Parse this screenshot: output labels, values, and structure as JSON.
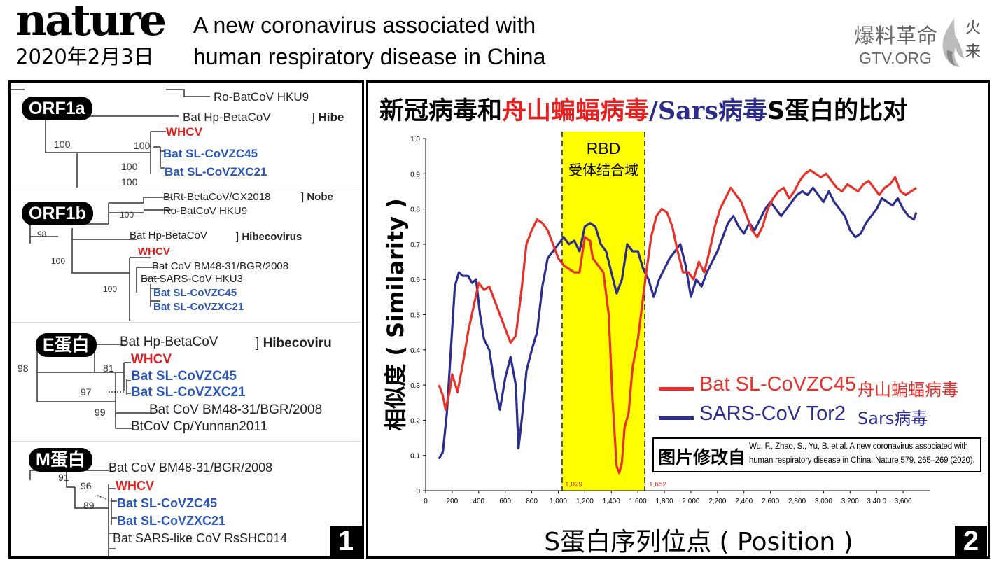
{
  "header": {
    "logo": "nature",
    "date": "2020年2月3日",
    "title_line1": "A new coronavirus associated with",
    "title_line2": "human respiratory disease in China"
  },
  "watermark": {
    "cn": "爆料革命",
    "url": "GTV.ORG",
    "mark": "火来"
  },
  "panel1": {
    "number": "1",
    "orf1a": {
      "badge": "ORF1a",
      "labels": [
        "Ro-BatCoV HKU9",
        "Bat Hp-BetaCoV",
        "WHCV",
        "Bat SL-CoVZC45",
        "Bat SL-CoVZXC21"
      ],
      "clade": "Hibe",
      "bootstraps": [
        "100",
        "100",
        "100",
        "100"
      ]
    },
    "orf1b": {
      "badge": "ORF1b",
      "labels": [
        "BtRt-BetaCoV/GX2018",
        "Ro-BatCoV HKU9",
        "Bat Hp-BetaCoV",
        "WHCV",
        "Bat CoV BM48-31/BGR/2008",
        "Bat SARS-CoV HKU3",
        "Bat SL-CoVZC45",
        "Bat SL-CoVZXC21"
      ],
      "clades": [
        "Nobe",
        "Hibecovirus"
      ],
      "bootstraps": [
        "100",
        "98",
        "100",
        "100"
      ]
    },
    "e": {
      "badge": "E蛋白",
      "labels": [
        "Bat Hp-BetaCoV",
        "WHCV",
        "Bat SL-CoVZC45",
        "Bat SL-CoVZXC21",
        "Bat CoV BM48-31/BGR/2008",
        "BtCoV Cp/Yunnan2011"
      ],
      "clade": "Hibecoviru",
      "bootstraps": [
        "98",
        "81",
        "97",
        "99"
      ]
    },
    "m": {
      "badge": "M蛋白",
      "labels": [
        "Bat CoV BM48-31/BGR/2008",
        "WHCV",
        "Bat SL-CoVZC45",
        "Bat SL-CoVZXC21",
        "Bat SARS-like CoV RsSHC014"
      ],
      "bootstraps": [
        "91",
        "96",
        "89"
      ]
    }
  },
  "panel2": {
    "number": "2",
    "title_parts": [
      "新冠病毒和",
      "舟山蝙蝠病毒",
      "/",
      "Sars",
      "病毒",
      "S蛋白的比对"
    ],
    "rbd_label": "RBD",
    "rbd_sublabel": "受体结合域",
    "rbd_start_label": "1,029",
    "rbd_end_label": "1,652",
    "legend": [
      {
        "name": "Bat SL-CoVZC45",
        "cn": "舟山蝙蝠病毒",
        "color": "#e8312a"
      },
      {
        "name": "SARS-CoV Tor2",
        "cn": "Sars病毒",
        "color": "#2b2e8f"
      }
    ],
    "credit_label": "图片修改自",
    "credit_line1": "Wu, F., Zhao, S., Yu, B. et al. A new coronavirus associated with",
    "credit_line2": "human respiratory disease in China. Nature 579, 265–269 (2020)."
  },
  "chart_data": {
    "type": "line",
    "title": "新冠病毒和舟山蝙蝠病毒/Sars病毒S蛋白的比对",
    "xlabel": "S蛋白序列位点 ( Position )",
    "ylabel": "相似度 ( Similarity )",
    "xlim": [
      0,
      3800
    ],
    "ylim": [
      0,
      1.0
    ],
    "x_ticks": [
      "0",
      "200",
      "400",
      "600",
      "800",
      "1,000",
      "1,200",
      "1,400",
      "1,600",
      "1,800",
      "2,000",
      "2,200",
      "2,400",
      "2,600",
      "2,800",
      "3,000",
      "3,200",
      "3,40 0",
      "3,600"
    ],
    "y_ticks": [
      "0",
      "0.1",
      "0.2",
      "0.3",
      "0.4",
      "0.5",
      "0.6",
      "0.7",
      "0.8",
      "0.9",
      "1.0"
    ],
    "highlight_region": [
      1029,
      1652
    ],
    "series": [
      {
        "name": "Bat SL-CoVZC45",
        "color": "#e8312a",
        "points": [
          [
            100,
            0.3
          ],
          [
            130,
            0.27
          ],
          [
            150,
            0.23
          ],
          [
            180,
            0.28
          ],
          [
            200,
            0.33
          ],
          [
            240,
            0.28
          ],
          [
            280,
            0.36
          ],
          [
            320,
            0.45
          ],
          [
            360,
            0.52
          ],
          [
            400,
            0.59
          ],
          [
            440,
            0.57
          ],
          [
            480,
            0.58
          ],
          [
            520,
            0.54
          ],
          [
            560,
            0.5
          ],
          [
            600,
            0.46
          ],
          [
            640,
            0.42
          ],
          [
            680,
            0.44
          ],
          [
            720,
            0.56
          ],
          [
            760,
            0.7
          ],
          [
            800,
            0.74
          ],
          [
            840,
            0.77
          ],
          [
            880,
            0.76
          ],
          [
            920,
            0.74
          ],
          [
            960,
            0.7
          ],
          [
            1000,
            0.66
          ],
          [
            1040,
            0.64
          ],
          [
            1080,
            0.63
          ],
          [
            1120,
            0.62
          ],
          [
            1160,
            0.62
          ],
          [
            1200,
            0.72
          ],
          [
            1240,
            0.71
          ],
          [
            1260,
            0.66
          ],
          [
            1300,
            0.64
          ],
          [
            1340,
            0.62
          ],
          [
            1380,
            0.5
          ],
          [
            1410,
            0.25
          ],
          [
            1440,
            0.07
          ],
          [
            1460,
            0.05
          ],
          [
            1480,
            0.08
          ],
          [
            1500,
            0.18
          ],
          [
            1530,
            0.22
          ],
          [
            1560,
            0.35
          ],
          [
            1600,
            0.43
          ],
          [
            1640,
            0.55
          ],
          [
            1660,
            0.61
          ],
          [
            1700,
            0.72
          ],
          [
            1740,
            0.78
          ],
          [
            1780,
            0.8
          ],
          [
            1820,
            0.79
          ],
          [
            1860,
            0.75
          ],
          [
            1900,
            0.68
          ],
          [
            1940,
            0.62
          ],
          [
            1980,
            0.62
          ],
          [
            2020,
            0.6
          ],
          [
            2060,
            0.65
          ],
          [
            2100,
            0.62
          ],
          [
            2140,
            0.68
          ],
          [
            2180,
            0.75
          ],
          [
            2220,
            0.8
          ],
          [
            2260,
            0.83
          ],
          [
            2300,
            0.86
          ],
          [
            2340,
            0.84
          ],
          [
            2380,
            0.82
          ],
          [
            2420,
            0.78
          ],
          [
            2460,
            0.74
          ],
          [
            2500,
            0.72
          ],
          [
            2540,
            0.75
          ],
          [
            2580,
            0.8
          ],
          [
            2620,
            0.83
          ],
          [
            2660,
            0.85
          ],
          [
            2700,
            0.86
          ],
          [
            2740,
            0.83
          ],
          [
            2780,
            0.85
          ],
          [
            2820,
            0.88
          ],
          [
            2860,
            0.9
          ],
          [
            2900,
            0.91
          ],
          [
            2940,
            0.9
          ],
          [
            2980,
            0.89
          ],
          [
            3020,
            0.9
          ],
          [
            3060,
            0.88
          ],
          [
            3100,
            0.86
          ],
          [
            3140,
            0.85
          ],
          [
            3180,
            0.87
          ],
          [
            3220,
            0.86
          ],
          [
            3260,
            0.85
          ],
          [
            3300,
            0.87
          ],
          [
            3340,
            0.88
          ],
          [
            3380,
            0.86
          ],
          [
            3420,
            0.84
          ],
          [
            3460,
            0.86
          ],
          [
            3500,
            0.87
          ],
          [
            3540,
            0.89
          ],
          [
            3580,
            0.85
          ],
          [
            3620,
            0.84
          ],
          [
            3660,
            0.85
          ],
          [
            3700,
            0.86
          ]
        ]
      },
      {
        "name": "SARS-CoV Tor2",
        "color": "#2b2e8f",
        "points": [
          [
            100,
            0.09
          ],
          [
            130,
            0.11
          ],
          [
            160,
            0.22
          ],
          [
            190,
            0.4
          ],
          [
            220,
            0.58
          ],
          [
            250,
            0.62
          ],
          [
            280,
            0.61
          ],
          [
            320,
            0.61
          ],
          [
            350,
            0.59
          ],
          [
            380,
            0.6
          ],
          [
            410,
            0.5
          ],
          [
            440,
            0.43
          ],
          [
            480,
            0.4
          ],
          [
            520,
            0.3
          ],
          [
            560,
            0.23
          ],
          [
            600,
            0.32
          ],
          [
            640,
            0.38
          ],
          [
            680,
            0.3
          ],
          [
            700,
            0.12
          ],
          [
            730,
            0.22
          ],
          [
            760,
            0.34
          ],
          [
            800,
            0.4
          ],
          [
            840,
            0.45
          ],
          [
            880,
            0.58
          ],
          [
            920,
            0.66
          ],
          [
            960,
            0.68
          ],
          [
            1000,
            0.7
          ],
          [
            1040,
            0.72
          ],
          [
            1080,
            0.7
          ],
          [
            1120,
            0.71
          ],
          [
            1160,
            0.68
          ],
          [
            1200,
            0.75
          ],
          [
            1240,
            0.76
          ],
          [
            1280,
            0.75
          ],
          [
            1320,
            0.7
          ],
          [
            1360,
            0.68
          ],
          [
            1400,
            0.62
          ],
          [
            1440,
            0.56
          ],
          [
            1480,
            0.6
          ],
          [
            1520,
            0.7
          ],
          [
            1560,
            0.68
          ],
          [
            1600,
            0.68
          ],
          [
            1640,
            0.63
          ],
          [
            1680,
            0.6
          ],
          [
            1720,
            0.55
          ],
          [
            1760,
            0.6
          ],
          [
            1800,
            0.63
          ],
          [
            1840,
            0.66
          ],
          [
            1880,
            0.68
          ],
          [
            1920,
            0.7
          ],
          [
            1960,
            0.64
          ],
          [
            2000,
            0.55
          ],
          [
            2040,
            0.6
          ],
          [
            2080,
            0.58
          ],
          [
            2120,
            0.62
          ],
          [
            2160,
            0.65
          ],
          [
            2200,
            0.68
          ],
          [
            2240,
            0.72
          ],
          [
            2280,
            0.76
          ],
          [
            2320,
            0.78
          ],
          [
            2360,
            0.75
          ],
          [
            2400,
            0.73
          ],
          [
            2440,
            0.76
          ],
          [
            2480,
            0.74
          ],
          [
            2520,
            0.77
          ],
          [
            2560,
            0.8
          ],
          [
            2600,
            0.82
          ],
          [
            2640,
            0.8
          ],
          [
            2680,
            0.78
          ],
          [
            2720,
            0.8
          ],
          [
            2760,
            0.82
          ],
          [
            2800,
            0.84
          ],
          [
            2840,
            0.85
          ],
          [
            2880,
            0.84
          ],
          [
            2920,
            0.86
          ],
          [
            2960,
            0.84
          ],
          [
            3000,
            0.82
          ],
          [
            3040,
            0.85
          ],
          [
            3080,
            0.82
          ],
          [
            3120,
            0.8
          ],
          [
            3160,
            0.78
          ],
          [
            3200,
            0.74
          ],
          [
            3240,
            0.72
          ],
          [
            3280,
            0.73
          ],
          [
            3320,
            0.76
          ],
          [
            3360,
            0.78
          ],
          [
            3400,
            0.8
          ],
          [
            3440,
            0.83
          ],
          [
            3480,
            0.82
          ],
          [
            3520,
            0.81
          ],
          [
            3560,
            0.83
          ],
          [
            3600,
            0.8
          ],
          [
            3640,
            0.78
          ],
          [
            3680,
            0.77
          ],
          [
            3700,
            0.79
          ]
        ]
      }
    ]
  }
}
